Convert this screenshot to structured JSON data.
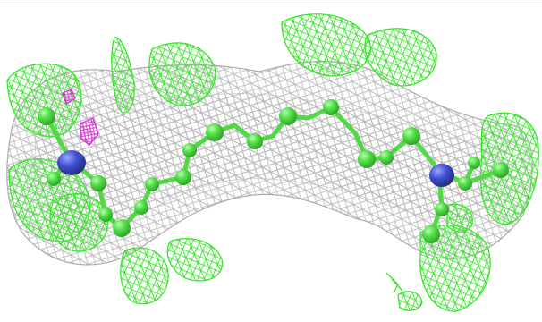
{
  "image": {
    "colors": {
      "background": "#ffffff",
      "mesh_grey": "#b8b8b8",
      "mesh_green": "#39e62b",
      "mesh_magenta": "#e020e0",
      "atom_carbon": "#55e04a",
      "atom_carbon_dark": "#2fa627",
      "atom_nitrogen": "#3f4fd0",
      "atom_nitrogen_dark": "#27317e",
      "bond": "#52d845"
    }
  }
}
